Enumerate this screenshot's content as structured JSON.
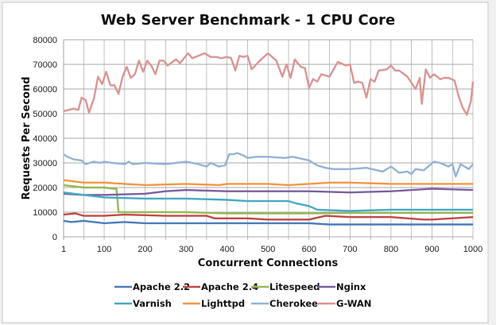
{
  "chart_data": {
    "type": "line",
    "title": "Web Server Benchmark - 1 CPU Core",
    "xlabel": "Concurrent Connections",
    "ylabel": "Requests Per Second",
    "xlim": [
      1,
      1000
    ],
    "ylim": [
      0,
      80000
    ],
    "xticks": [
      "1",
      "100",
      "200",
      "300",
      "400",
      "500",
      "600",
      "700",
      "800",
      "900",
      "1000"
    ],
    "yticks": [
      "0",
      "10000",
      "20000",
      "30000",
      "40000",
      "50000",
      "60000",
      "70000",
      "80000"
    ],
    "grid": true,
    "legend_position": "bottom",
    "series": [
      {
        "name": "Apache 2.2",
        "color": "#4a7ebb",
        "x": [
          1,
          20,
          50,
          100,
          150,
          200,
          300,
          400,
          500,
          600,
          650,
          700,
          800,
          900,
          1000
        ],
        "y": [
          6500,
          6000,
          6500,
          5500,
          6000,
          5500,
          5500,
          5500,
          5500,
          5500,
          5000,
          5000,
          5000,
          5000,
          5000
        ]
      },
      {
        "name": "Apache 2.4",
        "color": "#be4b48",
        "x": [
          1,
          30,
          50,
          100,
          150,
          250,
          350,
          370,
          450,
          500,
          600,
          640,
          700,
          800,
          880,
          900,
          1000
        ],
        "y": [
          9000,
          9500,
          8500,
          8500,
          9000,
          8500,
          8500,
          7500,
          7500,
          7000,
          7000,
          8500,
          8000,
          8000,
          7000,
          7000,
          8000
        ]
      },
      {
        "name": "Litespeed",
        "color": "#98b954",
        "x": [
          1,
          50,
          100,
          125,
          130,
          135,
          200,
          300,
          400,
          500,
          600,
          700,
          800,
          900,
          1000
        ],
        "y": [
          21000,
          20000,
          20000,
          19500,
          19500,
          10000,
          10000,
          10000,
          9500,
          9500,
          9500,
          9700,
          9700,
          9700,
          9700
        ]
      },
      {
        "name": "Nginx",
        "color": "#7d60a0",
        "x": [
          1,
          50,
          100,
          200,
          250,
          300,
          400,
          500,
          600,
          700,
          800,
          900,
          1000
        ],
        "y": [
          17500,
          17000,
          17000,
          17500,
          18500,
          19000,
          18500,
          18500,
          18500,
          18000,
          18500,
          19500,
          19000
        ]
      },
      {
        "name": "Varnish",
        "color": "#46aac5",
        "x": [
          1,
          50,
          100,
          200,
          300,
          400,
          450,
          550,
          570,
          600,
          620,
          700,
          800,
          900,
          1000
        ],
        "y": [
          18000,
          17000,
          16000,
          15500,
          15500,
          15000,
          14500,
          14500,
          13500,
          12500,
          11000,
          10500,
          11000,
          11000,
          11000
        ]
      },
      {
        "name": "Lighttpd",
        "color": "#f79646",
        "x": [
          1,
          50,
          100,
          150,
          200,
          300,
          380,
          400,
          500,
          550,
          600,
          650,
          700,
          800,
          900,
          1000
        ],
        "y": [
          23000,
          22000,
          22000,
          21500,
          21000,
          21500,
          21000,
          21500,
          21500,
          21000,
          21500,
          22000,
          22000,
          21500,
          21500,
          21500
        ]
      },
      {
        "name": "Cherokee",
        "color": "#94b3d6",
        "x": [
          1,
          10,
          25,
          45,
          55,
          75,
          90,
          100,
          120,
          150,
          160,
          170,
          200,
          250,
          300,
          330,
          350,
          360,
          380,
          395,
          405,
          415,
          425,
          440,
          450,
          470,
          500,
          540,
          560,
          600,
          620,
          640,
          660,
          700,
          740,
          780,
          800,
          820,
          840,
          850,
          860,
          880,
          905,
          920,
          940,
          950,
          958,
          970,
          990,
          1000
        ],
        "y": [
          33500,
          32500,
          31500,
          31000,
          29500,
          30500,
          30000,
          30500,
          30000,
          29500,
          30500,
          29500,
          30000,
          29500,
          30500,
          29500,
          28500,
          30000,
          28500,
          29000,
          33500,
          33500,
          34000,
          33000,
          32000,
          32500,
          32500,
          32000,
          32500,
          31000,
          29000,
          28000,
          27500,
          27500,
          28000,
          26500,
          28500,
          26000,
          26500,
          25500,
          27500,
          27000,
          30500,
          30000,
          28500,
          29500,
          24500,
          29500,
          27500,
          29500
        ]
      },
      {
        "name": "G-WAN",
        "color": "#da9694",
        "x": [
          1,
          25,
          37,
          45,
          55,
          63,
          75,
          85,
          95,
          105,
          115,
          125,
          135,
          145,
          155,
          165,
          175,
          185,
          195,
          205,
          215,
          225,
          235,
          245,
          255,
          275,
          285,
          305,
          315,
          330,
          345,
          360,
          375,
          385,
          400,
          410,
          420,
          430,
          440,
          450,
          460,
          480,
          500,
          520,
          535,
          545,
          555,
          565,
          580,
          590,
          600,
          610,
          620,
          630,
          650,
          670,
          690,
          700,
          710,
          720,
          730,
          740,
          750,
          760,
          770,
          790,
          800,
          810,
          820,
          840,
          860,
          870,
          875,
          885,
          895,
          905,
          920,
          930,
          940,
          955,
          965,
          975,
          985,
          995,
          1000
        ],
        "y": [
          51000,
          52000,
          51500,
          56500,
          55500,
          50500,
          56000,
          65000,
          62000,
          67000,
          61500,
          61500,
          58000,
          65000,
          69000,
          64500,
          66000,
          71500,
          67000,
          71500,
          69500,
          66000,
          71500,
          71500,
          69500,
          72000,
          70500,
          74500,
          72500,
          73500,
          74500,
          73000,
          73000,
          72500,
          73000,
          72500,
          67500,
          73500,
          73000,
          73500,
          68000,
          71500,
          74500,
          71500,
          65000,
          70000,
          64500,
          72000,
          69000,
          68500,
          60500,
          64000,
          63000,
          66000,
          65000,
          71000,
          69500,
          70000,
          62500,
          63000,
          62500,
          56500,
          64000,
          63000,
          67500,
          68000,
          69500,
          67500,
          67500,
          65000,
          60000,
          64500,
          54000,
          68000,
          64500,
          66000,
          64000,
          64500,
          64500,
          63500,
          57000,
          52500,
          49500,
          55000,
          63000
        ]
      }
    ]
  }
}
